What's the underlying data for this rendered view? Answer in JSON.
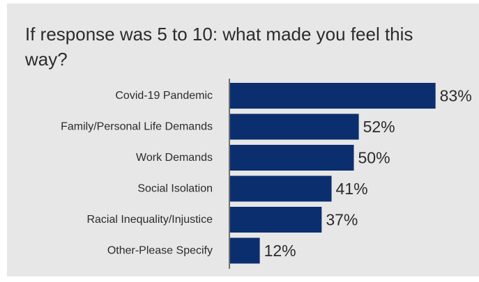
{
  "chart_data": {
    "type": "bar",
    "orientation": "horizontal",
    "title": "If response was 5 to 10: what made you feel this way?",
    "categories": [
      "Covid-19 Pandemic",
      "Family/Personal Life Demands",
      "Work Demands",
      "Social Isolation",
      "Racial Inequality/Injustice",
      "Other-Please Specify"
    ],
    "values": [
      83,
      52,
      50,
      41,
      37,
      12
    ],
    "value_labels": [
      "83%",
      "52%",
      "50%",
      "41%",
      "37%",
      "12%"
    ],
    "unit": "%",
    "xlim": [
      0,
      100
    ],
    "grid": false,
    "legend": "none",
    "bar_color": "#0b2f6e"
  }
}
